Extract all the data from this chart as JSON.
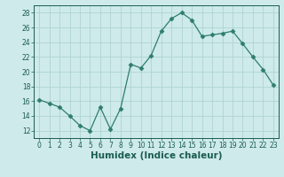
{
  "x": [
    0,
    1,
    2,
    3,
    4,
    5,
    6,
    7,
    8,
    9,
    10,
    11,
    12,
    13,
    14,
    15,
    16,
    17,
    18,
    19,
    20,
    21,
    22,
    23
  ],
  "y": [
    16.2,
    15.7,
    15.2,
    14.0,
    12.7,
    12.0,
    15.2,
    12.2,
    15.0,
    21.0,
    20.5,
    22.2,
    25.5,
    27.2,
    28.0,
    27.0,
    24.8,
    25.0,
    25.2,
    25.5,
    23.8,
    22.0,
    20.3,
    18.2
  ],
  "line_color": "#2e7d6e",
  "marker": "D",
  "marker_size": 2.5,
  "bg_color": "#ceeaea",
  "grid_color": "#aacfcf",
  "xlabel": "Humidex (Indice chaleur)",
  "xlim": [
    -0.5,
    23.5
  ],
  "ylim": [
    11,
    29
  ],
  "yticks": [
    12,
    14,
    16,
    18,
    20,
    22,
    24,
    26,
    28
  ],
  "xticks": [
    0,
    1,
    2,
    3,
    4,
    5,
    6,
    7,
    8,
    9,
    10,
    11,
    12,
    13,
    14,
    15,
    16,
    17,
    18,
    19,
    20,
    21,
    22,
    23
  ],
  "tick_label_size": 5.5,
  "xlabel_size": 7.5,
  "axis_color": "#1a5c52"
}
